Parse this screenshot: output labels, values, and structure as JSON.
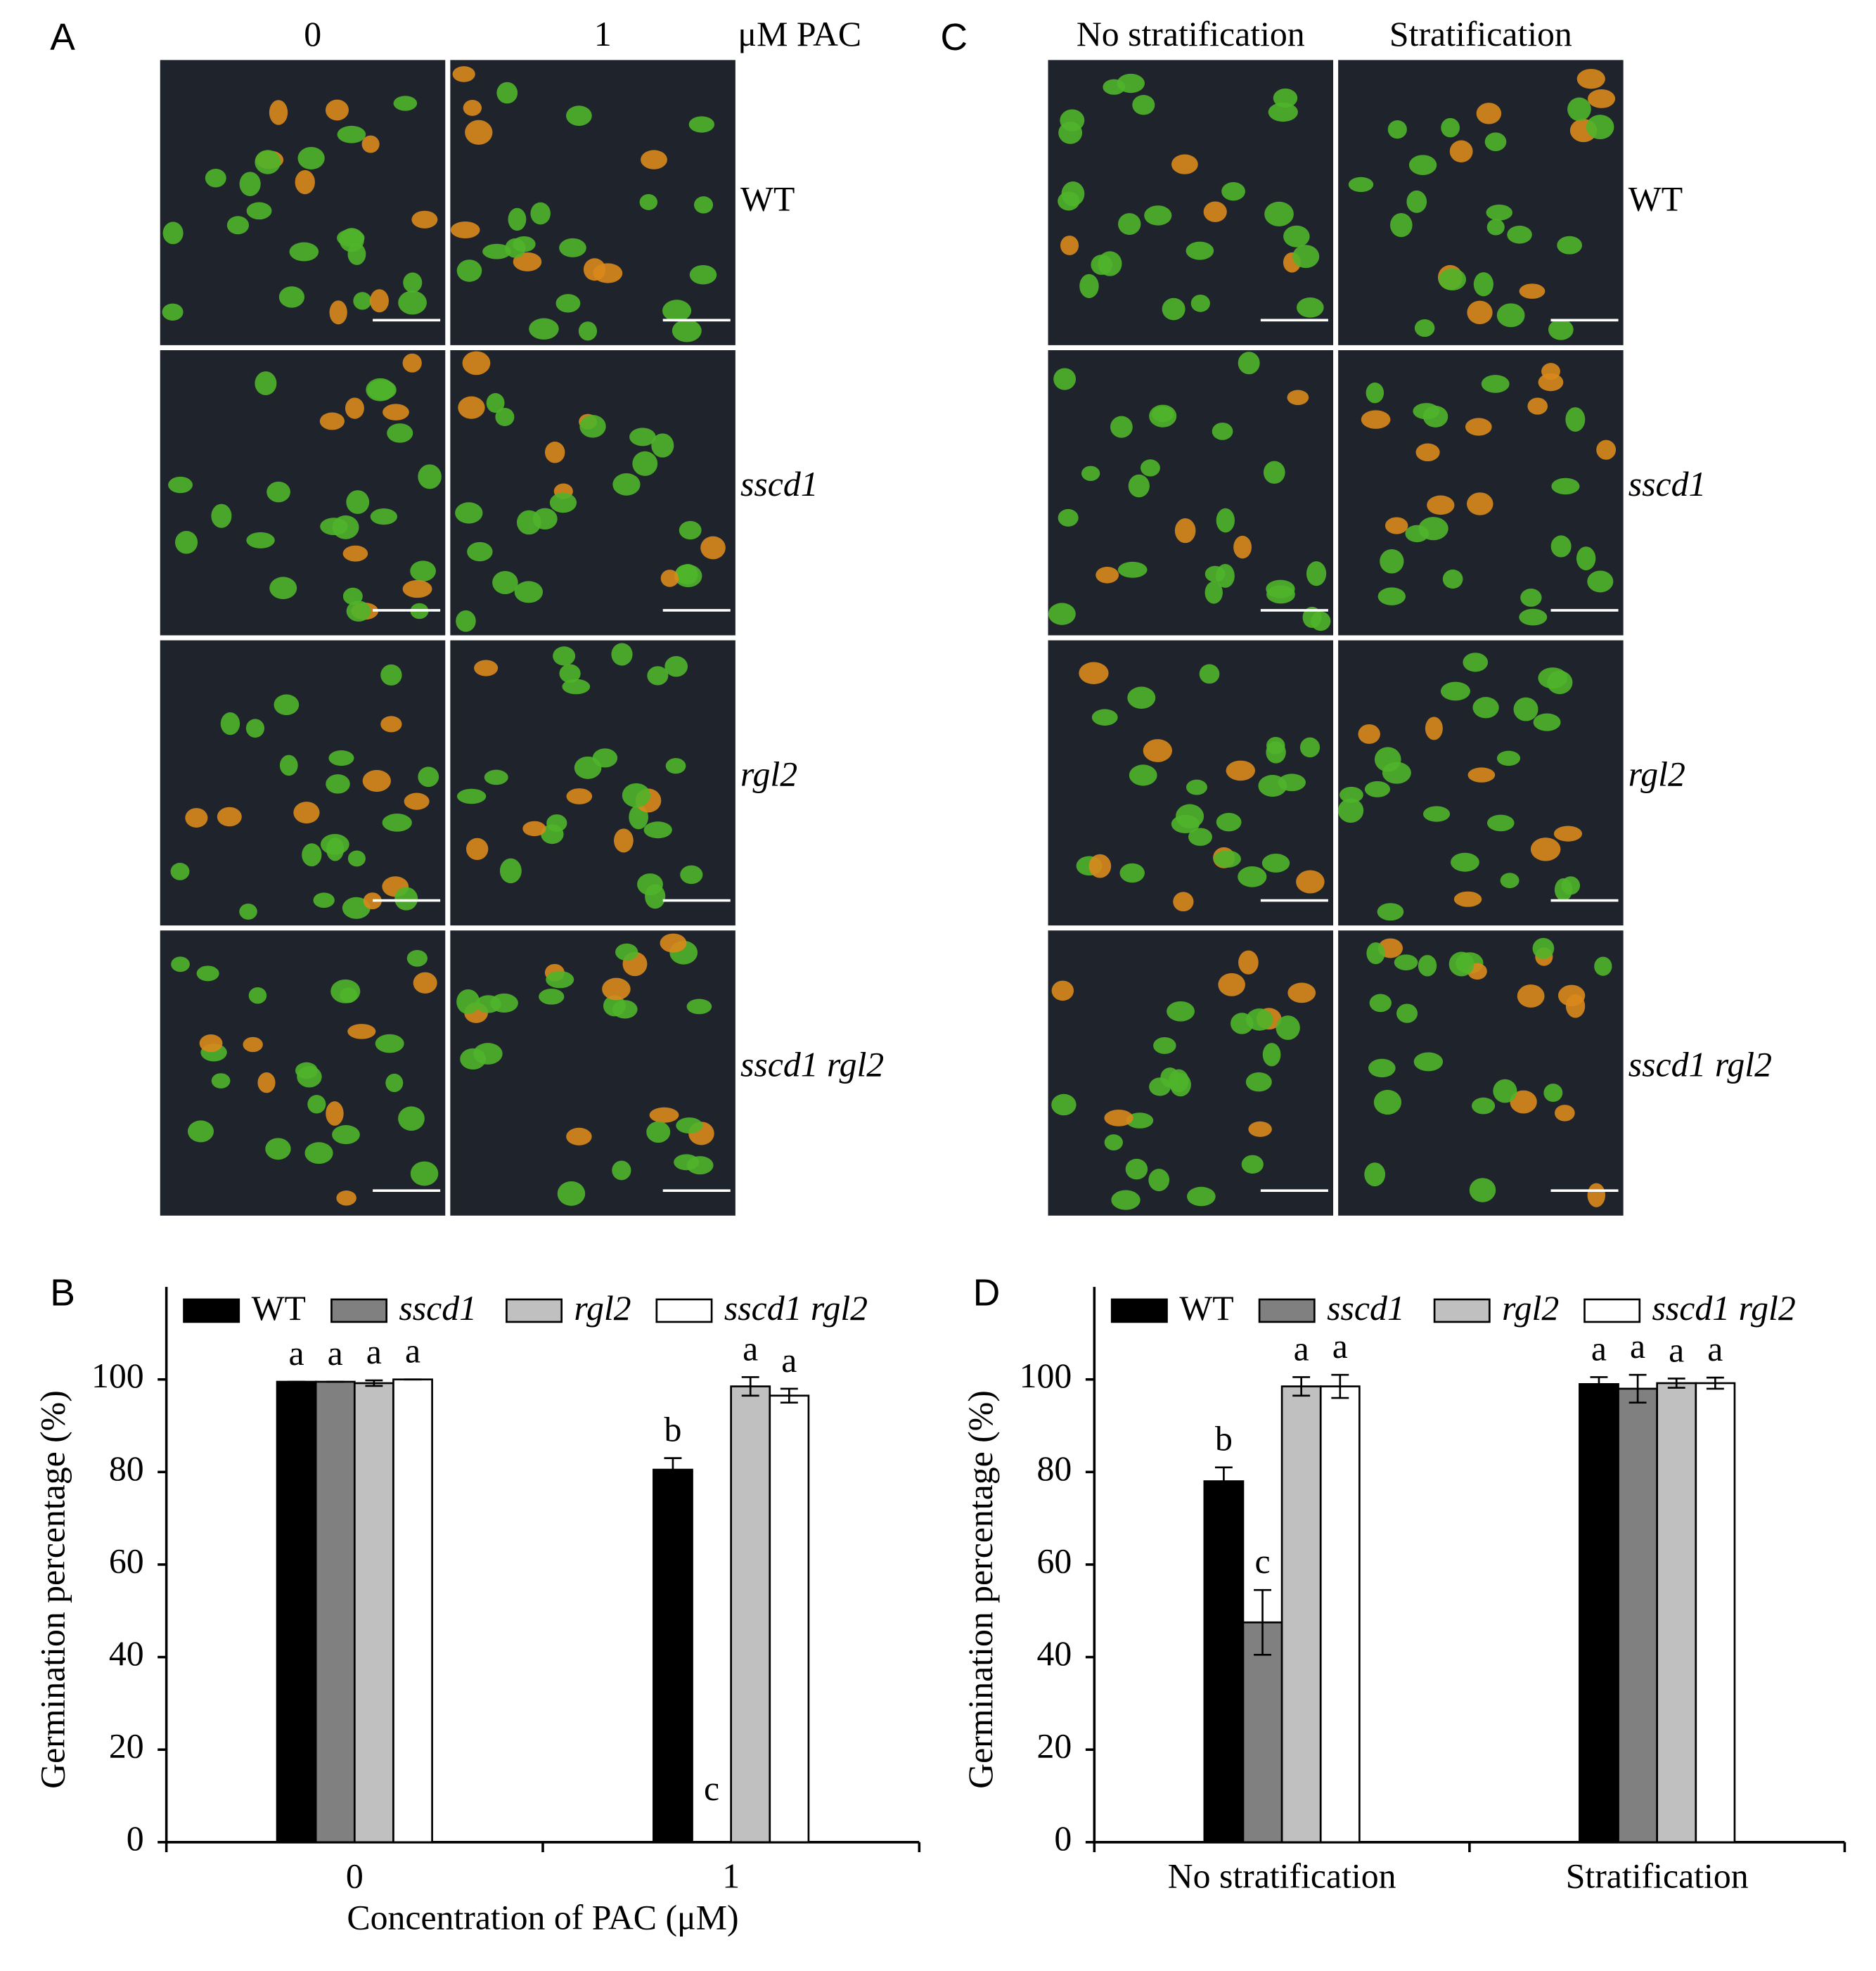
{
  "panels": [
    {
      "letter": "A",
      "columns": [
        "0",
        "1"
      ],
      "unit": "μM PAC",
      "rows": [
        "WT",
        "sscd1",
        "rgl2",
        "sscd1 rgl2"
      ]
    },
    {
      "letter": "C",
      "columns": [
        "No stratification",
        "Stratification"
      ],
      "rows": [
        "WT",
        "sscd1",
        "rgl2",
        "sscd1 rgl2"
      ]
    }
  ],
  "chart_data": [
    {
      "type": "bar",
      "letter": "B",
      "categories": [
        "0",
        "1"
      ],
      "x_label": "Concentration of PAC (μM)",
      "y_label": "Germination percentage (%)",
      "ylim": [
        0,
        120
      ],
      "yticks": [
        0,
        20,
        40,
        60,
        80,
        100
      ],
      "series": [
        {
          "name": "WT",
          "color": "#000000",
          "values": [
            99.5,
            80.5
          ],
          "errors": [
            0,
            2.5
          ],
          "letters": [
            "a",
            "b"
          ]
        },
        {
          "name": "sscd1",
          "color": "#808080",
          "values": [
            99.5,
            0
          ],
          "errors": [
            0,
            0
          ],
          "letters": [
            "a",
            "c"
          ]
        },
        {
          "name": "rgl2",
          "color": "#c0c0c0",
          "values": [
            99.2,
            98.5
          ],
          "errors": [
            0.6,
            2
          ],
          "letters": [
            "a",
            "a"
          ]
        },
        {
          "name": "sscd1 rgl2",
          "color": "#ffffff",
          "values": [
            100,
            96.5
          ],
          "errors": [
            0,
            1.5
          ],
          "letters": [
            "a",
            "a"
          ]
        }
      ]
    },
    {
      "type": "bar",
      "letter": "D",
      "categories": [
        "No stratification",
        "Stratification"
      ],
      "y_label": "Germination percentage (%)",
      "ylim": [
        0,
        120
      ],
      "yticks": [
        0,
        20,
        40,
        60,
        80,
        100
      ],
      "series": [
        {
          "name": "WT",
          "color": "#000000",
          "values": [
            78,
            99
          ],
          "errors": [
            3,
            1.5
          ],
          "letters": [
            "b",
            "a"
          ]
        },
        {
          "name": "sscd1",
          "color": "#808080",
          "values": [
            47.5,
            98
          ],
          "errors": [
            7,
            3
          ],
          "letters": [
            "c",
            "a"
          ]
        },
        {
          "name": "rgl2",
          "color": "#c0c0c0",
          "values": [
            98.5,
            99.2
          ],
          "errors": [
            2,
            1
          ],
          "letters": [
            "a",
            "a"
          ]
        },
        {
          "name": "sscd1 rgl2",
          "color": "#ffffff",
          "values": [
            98.5,
            99.2
          ],
          "errors": [
            2.5,
            1.2
          ],
          "letters": [
            "a",
            "a"
          ]
        }
      ]
    }
  ]
}
